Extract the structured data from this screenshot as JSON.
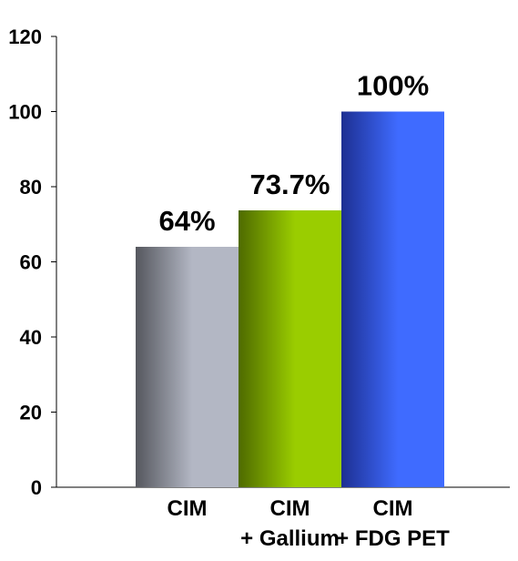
{
  "chart_data": {
    "type": "bar",
    "title": "",
    "xlabel": "",
    "ylabel": "",
    "ylim": [
      0,
      120
    ],
    "yticks": [
      0,
      20,
      40,
      60,
      80,
      100,
      120
    ],
    "ytick_labels": [
      "0",
      "20",
      "40",
      "60",
      "80",
      "100",
      "120"
    ],
    "categories": [
      {
        "lines": [
          "CIM"
        ]
      },
      {
        "lines": [
          "CIM",
          "+ Gallium"
        ]
      },
      {
        "lines": [
          "CIM",
          "+ FDG PET"
        ]
      }
    ],
    "values": [
      64,
      73.7,
      100
    ],
    "data_labels": [
      "64%",
      "73.7%",
      "100%"
    ],
    "bar_colors": [
      {
        "dark": "#55575e",
        "light": "#b3b7c4"
      },
      {
        "dark": "#4e6a00",
        "light": "#9acd00"
      },
      {
        "dark": "#1d2f92",
        "light": "#3f6bff"
      }
    ],
    "grid": false,
    "legend": "none"
  }
}
